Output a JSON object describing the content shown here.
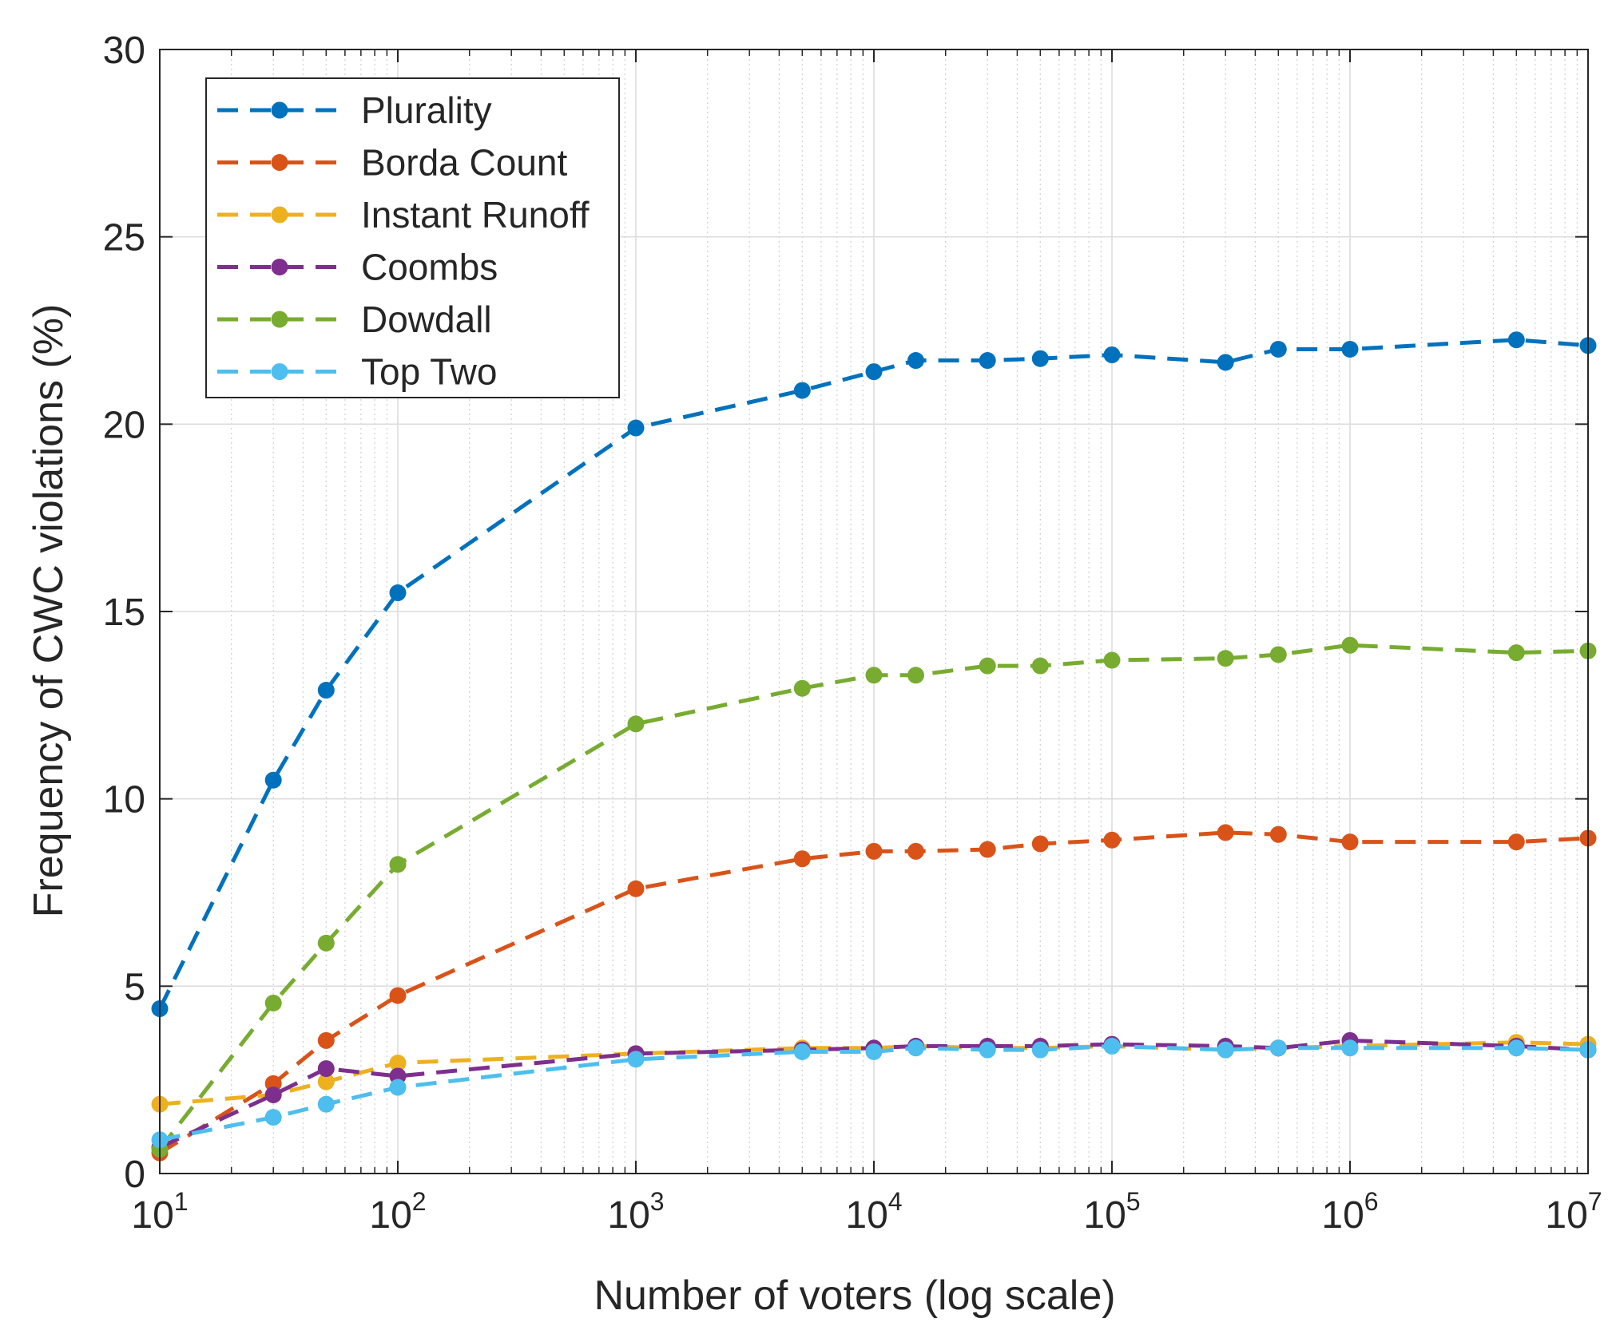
{
  "chart_data": {
    "type": "line",
    "xscale": "log",
    "xlabel": "Number of voters (log scale)",
    "ylabel": "Frequency of CWC violations (%)",
    "xlim": [
      10,
      10000000
    ],
    "ylim": [
      0,
      30
    ],
    "y_ticks": [
      0,
      5,
      10,
      15,
      20,
      25,
      30
    ],
    "x_ticks": [
      {
        "value": 10,
        "base": "10",
        "exp": "1"
      },
      {
        "value": 100,
        "base": "10",
        "exp": "2"
      },
      {
        "value": 1000,
        "base": "10",
        "exp": "3"
      },
      {
        "value": 10000,
        "base": "10",
        "exp": "4"
      },
      {
        "value": 100000,
        "base": "10",
        "exp": "5"
      },
      {
        "value": 1000000,
        "base": "10",
        "exp": "6"
      },
      {
        "value": 10000000,
        "base": "10",
        "exp": "7"
      }
    ],
    "grid": true,
    "minor_grid": true,
    "legend_position": "top-left",
    "x": [
      10,
      30,
      50,
      100,
      1000,
      5000,
      10000,
      15000,
      30000,
      50000,
      100000,
      300000,
      500000,
      1000000,
      5000000,
      10000000
    ],
    "series": [
      {
        "name": "Plurality",
        "color": "#0072bd",
        "values": [
          4.4,
          10.5,
          12.9,
          15.5,
          19.9,
          20.9,
          21.4,
          21.7,
          21.7,
          21.75,
          21.85,
          21.65,
          22.0,
          22.0,
          22.25,
          22.1
        ]
      },
      {
        "name": "Borda Count",
        "color": "#d95319",
        "values": [
          0.55,
          2.4,
          3.55,
          4.75,
          7.6,
          8.4,
          8.6,
          8.6,
          8.65,
          8.8,
          8.9,
          9.1,
          9.05,
          8.85,
          8.85,
          8.95
        ]
      },
      {
        "name": "Instant Runoff",
        "color": "#edb120",
        "values": [
          1.85,
          2.1,
          2.45,
          2.95,
          3.2,
          3.35,
          3.35,
          3.4,
          3.35,
          3.35,
          3.4,
          3.3,
          3.35,
          3.4,
          3.5,
          3.45
        ]
      },
      {
        "name": "Coombs",
        "color": "#7e2f8e",
        "values": [
          0.7,
          2.1,
          2.8,
          2.6,
          3.2,
          3.3,
          3.35,
          3.4,
          3.4,
          3.4,
          3.45,
          3.4,
          3.35,
          3.55,
          3.4,
          3.3
        ]
      },
      {
        "name": "Dowdall",
        "color": "#77ac30",
        "values": [
          0.65,
          4.55,
          6.15,
          8.25,
          12.0,
          12.95,
          13.3,
          13.3,
          13.55,
          13.55,
          13.7,
          13.75,
          13.85,
          14.1,
          13.9,
          13.95
        ]
      },
      {
        "name": "Top Two",
        "color": "#4dbeee",
        "values": [
          0.9,
          1.5,
          1.85,
          2.3,
          3.05,
          3.25,
          3.25,
          3.35,
          3.3,
          3.3,
          3.4,
          3.3,
          3.35,
          3.35,
          3.35,
          3.3
        ]
      }
    ]
  }
}
